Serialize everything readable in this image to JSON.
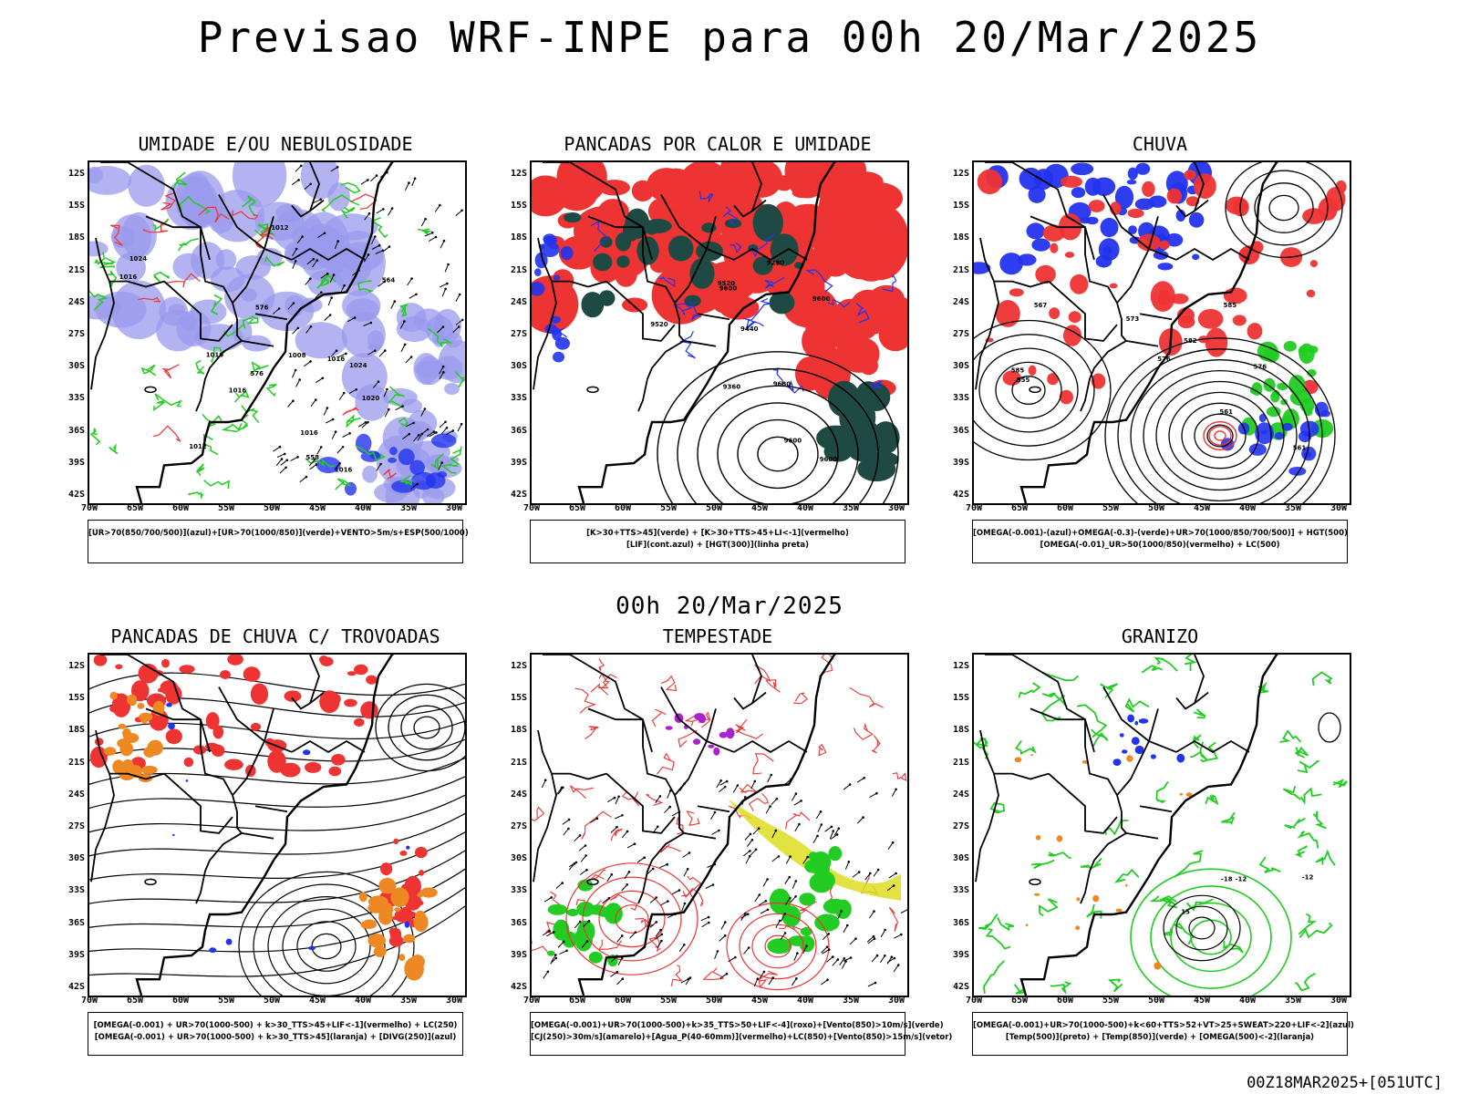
{
  "main_title": "Previsao WRF-INPE  para 00h 20/Mar/2025",
  "mid_date": "00h 20/Mar/2025",
  "footer": "00Z18MAR2025+[051UTC]",
  "lat_labels": [
    "12S",
    "15S",
    "18S",
    "21S",
    "24S",
    "27S",
    "30S",
    "33S",
    "36S",
    "39S",
    "42S"
  ],
  "lon_labels": [
    "70W",
    "65W",
    "60W",
    "55W",
    "50W",
    "45W",
    "40W",
    "35W",
    "30W"
  ],
  "panels": [
    {
      "title": "UMIDADE E/OU NEBULOSIDADE",
      "legend": [
        "[UR>70(850/700/500)](azul)+[UR>70(1000/850)](verde)+VENTO>5m/s+ESP(500/1000)"
      ]
    },
    {
      "title": "PANCADAS POR CALOR E UMIDADE",
      "legend": [
        "[K>30+TTS>45](verde) + [K>30+TTS>45+LI<-1](vermelho)",
        "[LIF](cont.azul) + [HGT(300)](linha preta)"
      ]
    },
    {
      "title": "CHUVA",
      "legend": [
        "[OMEGA(-0.001)-(azul)+OMEGA(-0.3)-(verde)+UR>70(1000/850/700/500)] + HGT(500)",
        "[OMEGA(-0.01)_UR>50(1000/850)(vermelho) + LC(500)"
      ]
    },
    {
      "title": "PANCADAS DE CHUVA C/ TROVOADAS",
      "legend": [
        "[OMEGA(-0.001) + UR>70(1000-500) + k>30_TTS>45+LIF<-1](vermelho) + LC(250)",
        "[OMEGA(-0.001) + UR>70(1000-500) + k>30_TTS>45](laranja) + [DIVG(250)](azul)"
      ]
    },
    {
      "title": "TEMPESTADE",
      "legend": [
        "[OMEGA(-0.001)+UR>70(1000-500)+k>35_TTS>50+LIF<-4](roxo)+[Vento(850)>10m/s](verde)",
        "[CJ(250)>30m/s](amarelo)+[Agua_P(40-60mm)](vermelho)+LC(850)+[Vento(850)>15m/s](vetor)"
      ]
    },
    {
      "title": "GRANIZO",
      "legend": [
        "[OMEGA(-0.001)+UR>70(1000-500)+k<60+TTS>52+VT>25+SWEAT>220+LIF<-2](azul)",
        "[Temp(500)](preto) + [Temp(850)](verde) + [OMEGA(500)<-2](laranja)"
      ]
    }
  ],
  "map_labels": {
    "p1": [
      "1024",
      "1024",
      "1016",
      "1020",
      "1016",
      "1016",
      "1016",
      "1016",
      "1012",
      "1008",
      "1012",
      "576",
      "576",
      "564",
      "558",
      "1016"
    ],
    "p2": [
      "9680",
      "9600",
      "9600",
      "9600",
      "9520",
      "9520",
      "9440",
      "9360",
      "9280",
      "9600"
    ],
    "p3": [
      "585",
      "576",
      "576",
      "573",
      "567",
      "561",
      "555",
      "582",
      "585",
      "561"
    ],
    "p6": [
      "-12",
      "-12",
      "-18",
      "15"
    ]
  },
  "colors": {
    "green": "#22cc22",
    "red": "#ee3333",
    "blue": "#2233ee",
    "lavender": "#9999ee",
    "darkgreen": "#1f4a44",
    "orange": "#ee8822",
    "yellow": "#dddd22",
    "purple": "#aa22cc"
  }
}
